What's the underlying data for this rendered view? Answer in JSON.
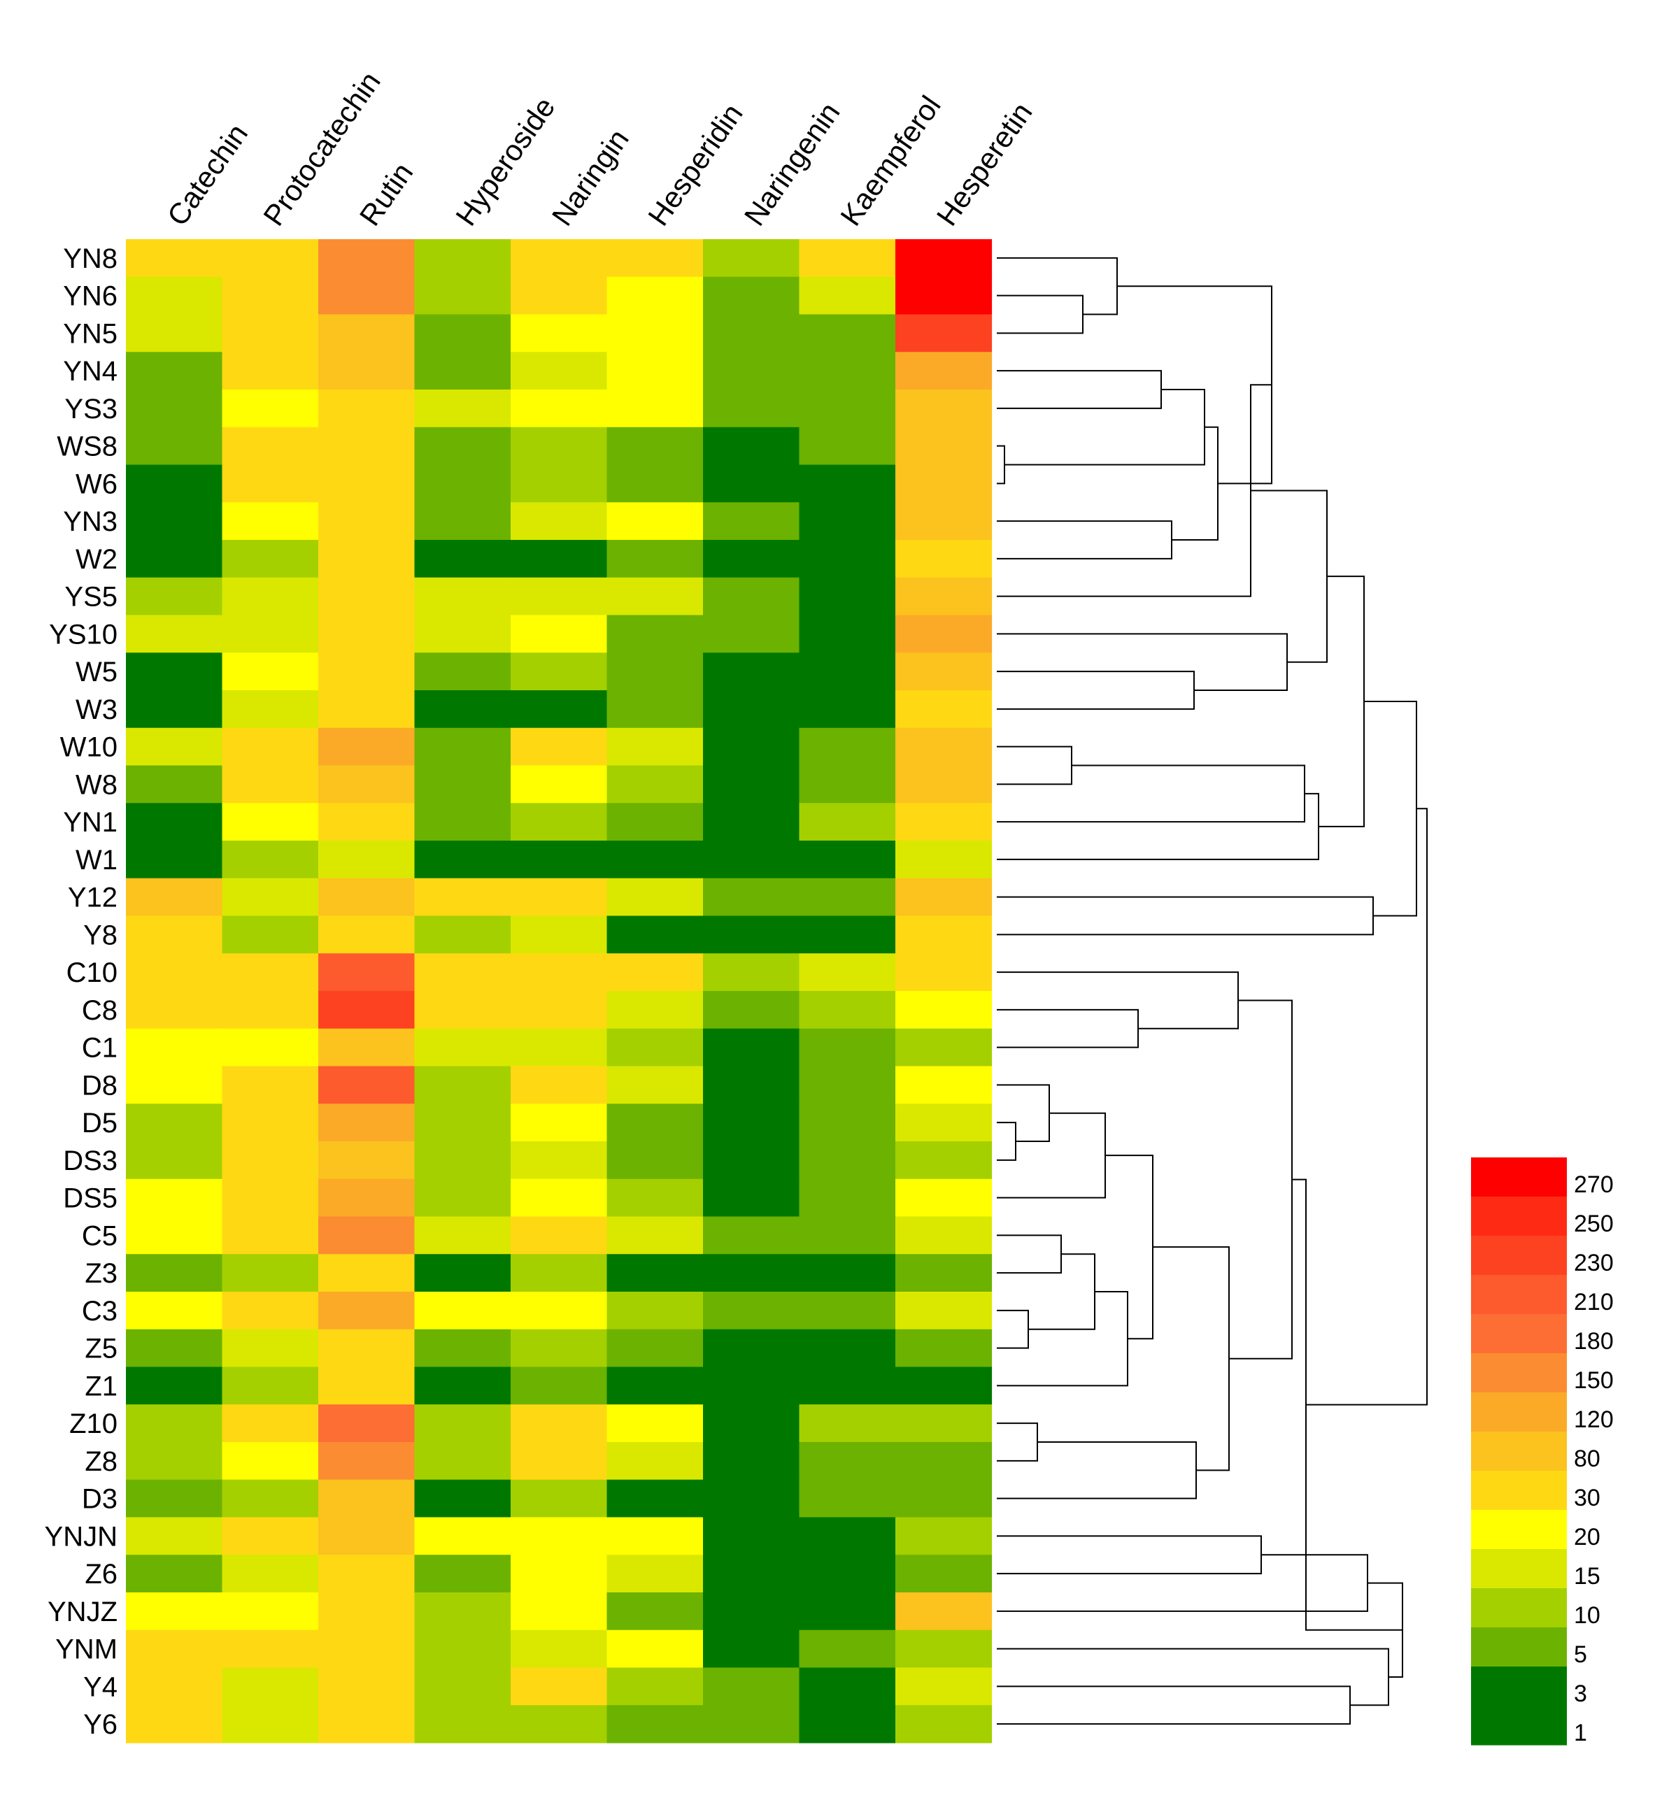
{
  "chart_data": {
    "type": "heatmap",
    "title": "",
    "columns": [
      "Catechin",
      "Protocatechin",
      "Rutin",
      "Hyperoside",
      "Naringin",
      "Hesperidin",
      "Naringenin",
      "Kaempferol",
      "Hesperetin"
    ],
    "rows": [
      "YN8",
      "YN6",
      "YN5",
      "YN4",
      "YS3",
      "WS8",
      "W6",
      "YN3",
      "W2",
      "YS5",
      "YS10",
      "W5",
      "W3",
      "W10",
      "W8",
      "YN1",
      "W1",
      "Y12",
      "Y8",
      "C10",
      "C8",
      "C1",
      "D8",
      "D5",
      "DS3",
      "DS5",
      "C5",
      "Z3",
      "C3",
      "Z5",
      "Z1",
      "Z10",
      "Z8",
      "D3",
      "YNJN",
      "Z6",
      "YNJZ",
      "YNM",
      "Y4",
      "Y6"
    ],
    "color_scale": {
      "tick_labels": [
        "1",
        "3",
        "5",
        "10",
        "15",
        "20",
        "30",
        "80",
        "120",
        "150",
        "180",
        "210",
        "230",
        "250",
        "270"
      ],
      "colors": [
        "#007800",
        "#007800",
        "#6cb200",
        "#a4d000",
        "#dae800",
        "#ffff00",
        "#ffd814",
        "#fcc21e",
        "#fbaa28",
        "#fb8c32",
        "#fc6e34",
        "#fd5a2e",
        "#fd4222",
        "#ff2a14",
        "#ff0000"
      ]
    },
    "values": [
      [
        30,
        30,
        150,
        10,
        30,
        30,
        10,
        30,
        270
      ],
      [
        15,
        30,
        150,
        10,
        30,
        20,
        5,
        15,
        270
      ],
      [
        15,
        30,
        80,
        5,
        20,
        20,
        5,
        5,
        230
      ],
      [
        5,
        30,
        80,
        5,
        15,
        20,
        5,
        5,
        120
      ],
      [
        5,
        20,
        30,
        15,
        20,
        20,
        5,
        5,
        80
      ],
      [
        5,
        30,
        30,
        5,
        10,
        5,
        1,
        5,
        80
      ],
      [
        1,
        30,
        30,
        5,
        10,
        5,
        1,
        1,
        80
      ],
      [
        1,
        20,
        30,
        5,
        15,
        20,
        5,
        1,
        80
      ],
      [
        1,
        10,
        30,
        1,
        1,
        5,
        1,
        1,
        30
      ],
      [
        10,
        15,
        30,
        15,
        15,
        15,
        5,
        1,
        80
      ],
      [
        15,
        15,
        30,
        15,
        20,
        5,
        5,
        1,
        120
      ],
      [
        1,
        20,
        30,
        5,
        10,
        5,
        1,
        1,
        80
      ],
      [
        1,
        15,
        30,
        1,
        1,
        5,
        1,
        1,
        30
      ],
      [
        15,
        30,
        120,
        5,
        30,
        15,
        1,
        5,
        80
      ],
      [
        5,
        30,
        80,
        5,
        20,
        10,
        1,
        5,
        80
      ],
      [
        1,
        20,
        30,
        5,
        10,
        5,
        1,
        10,
        30
      ],
      [
        1,
        10,
        15,
        1,
        1,
        1,
        1,
        1,
        15
      ],
      [
        80,
        15,
        80,
        30,
        30,
        15,
        5,
        5,
        80
      ],
      [
        30,
        10,
        30,
        10,
        15,
        1,
        1,
        1,
        30
      ],
      [
        30,
        30,
        210,
        30,
        30,
        30,
        10,
        15,
        30
      ],
      [
        30,
        30,
        230,
        30,
        30,
        15,
        5,
        10,
        20
      ],
      [
        20,
        20,
        80,
        15,
        15,
        10,
        1,
        5,
        10
      ],
      [
        20,
        30,
        210,
        10,
        30,
        15,
        1,
        5,
        20
      ],
      [
        10,
        30,
        120,
        10,
        20,
        5,
        1,
        5,
        15
      ],
      [
        10,
        30,
        80,
        10,
        15,
        5,
        1,
        5,
        10
      ],
      [
        20,
        30,
        120,
        10,
        20,
        10,
        1,
        5,
        20
      ],
      [
        20,
        30,
        150,
        15,
        30,
        15,
        5,
        5,
        15
      ],
      [
        5,
        10,
        30,
        1,
        10,
        1,
        1,
        1,
        5
      ],
      [
        20,
        30,
        120,
        20,
        20,
        10,
        5,
        5,
        15
      ],
      [
        5,
        15,
        30,
        5,
        10,
        5,
        1,
        1,
        5
      ],
      [
        1,
        10,
        30,
        1,
        5,
        1,
        1,
        1,
        1
      ],
      [
        10,
        30,
        180,
        10,
        30,
        20,
        1,
        10,
        10
      ],
      [
        10,
        20,
        150,
        10,
        30,
        15,
        1,
        5,
        5
      ],
      [
        5,
        10,
        80,
        1,
        10,
        1,
        1,
        5,
        5
      ],
      [
        15,
        30,
        80,
        20,
        20,
        20,
        1,
        1,
        10
      ],
      [
        5,
        15,
        30,
        5,
        20,
        15,
        1,
        1,
        5
      ],
      [
        20,
        20,
        30,
        10,
        20,
        5,
        1,
        1,
        80
      ],
      [
        30,
        30,
        30,
        10,
        15,
        20,
        1,
        5,
        10
      ],
      [
        30,
        15,
        30,
        10,
        30,
        10,
        5,
        1,
        15
      ],
      [
        30,
        15,
        30,
        10,
        10,
        5,
        5,
        1,
        10
      ]
    ],
    "dendrogram": {
      "description": "Row clustering tree shown to the right of the heatmap"
    }
  }
}
